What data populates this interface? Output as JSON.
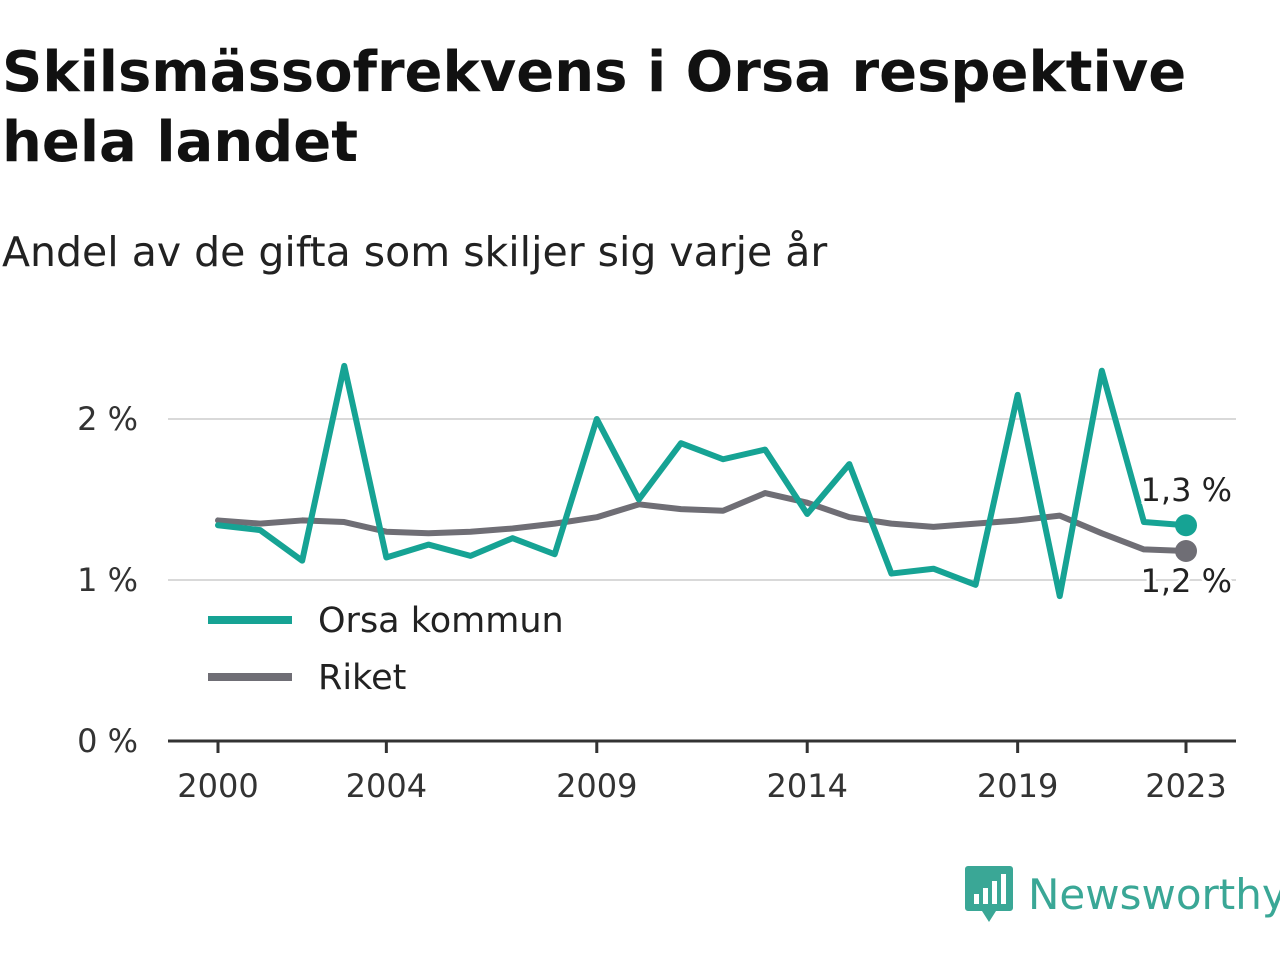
{
  "chart_data": {
    "type": "line",
    "title": "Skilsmässofrekvens i Orsa respektive hela landet",
    "subtitle": "Andel av de gifta som skiljer sig varje år",
    "x": [
      2000,
      2001,
      2002,
      2003,
      2004,
      2005,
      2006,
      2007,
      2008,
      2009,
      2010,
      2011,
      2012,
      2013,
      2014,
      2015,
      2016,
      2017,
      2018,
      2019,
      2020,
      2021,
      2022,
      2023
    ],
    "x_ticks": [
      "2000",
      "2004",
      "2009",
      "2014",
      "2019",
      "2023"
    ],
    "y_ticks": [
      "0 %",
      "1 %",
      "2 %"
    ],
    "ylim": [
      0,
      2.5
    ],
    "grid": true,
    "legend_position": "bottom-left",
    "series": [
      {
        "name": "Orsa kommun",
        "color": "#16a394",
        "values": [
          1.34,
          1.31,
          1.12,
          2.33,
          1.14,
          1.22,
          1.15,
          1.26,
          1.16,
          2.0,
          1.5,
          1.85,
          1.75,
          1.81,
          1.41,
          1.72,
          1.04,
          1.07,
          0.97,
          2.15,
          0.9,
          2.3,
          1.36,
          1.34
        ],
        "end_label": "1,3 %"
      },
      {
        "name": "Riket",
        "color": "#6f6e75",
        "values": [
          1.37,
          1.35,
          1.37,
          1.36,
          1.3,
          1.29,
          1.3,
          1.32,
          1.35,
          1.39,
          1.47,
          1.44,
          1.43,
          1.54,
          1.48,
          1.39,
          1.35,
          1.33,
          1.35,
          1.37,
          1.4,
          1.29,
          1.19,
          1.18
        ],
        "end_label": "1,2 %"
      }
    ]
  },
  "brand": {
    "name": "Newsworthy",
    "color": "#3aa796"
  }
}
